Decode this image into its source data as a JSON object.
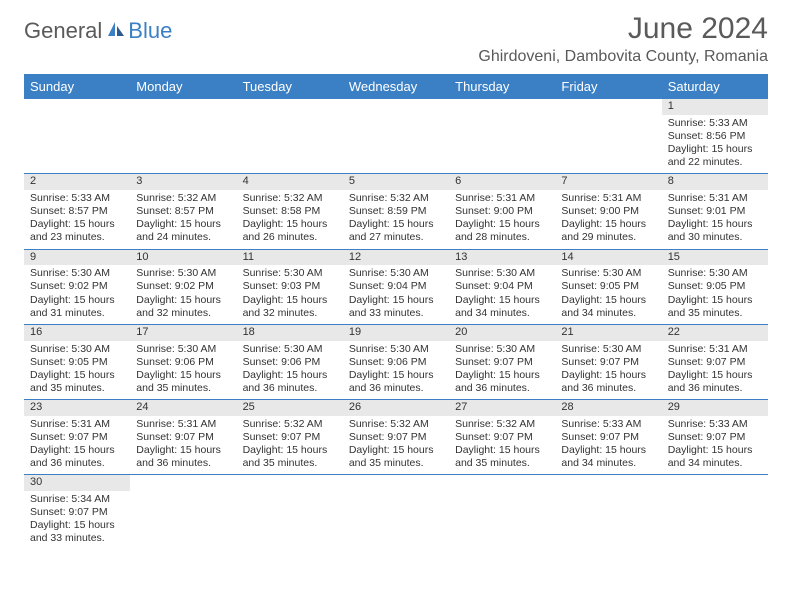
{
  "logo": {
    "part1": "General",
    "part2": "Blue"
  },
  "title": "June 2024",
  "location": "Ghirdoveni, Dambovita County, Romania",
  "colors": {
    "header_bg": "#3b7fc4",
    "header_text": "#ffffff",
    "daynum_bg": "#e8e8e8",
    "border": "#3b7fc4",
    "text": "#333333",
    "logo_gray": "#5a5a5a",
    "logo_blue": "#3b7fc4"
  },
  "weekdays": [
    "Sunday",
    "Monday",
    "Tuesday",
    "Wednesday",
    "Thursday",
    "Friday",
    "Saturday"
  ],
  "weeks": [
    [
      null,
      null,
      null,
      null,
      null,
      null,
      {
        "d": "1",
        "sr": "5:33 AM",
        "ss": "8:56 PM",
        "dl": "15 hours and 22 minutes."
      }
    ],
    [
      {
        "d": "2",
        "sr": "5:33 AM",
        "ss": "8:57 PM",
        "dl": "15 hours and 23 minutes."
      },
      {
        "d": "3",
        "sr": "5:32 AM",
        "ss": "8:57 PM",
        "dl": "15 hours and 24 minutes."
      },
      {
        "d": "4",
        "sr": "5:32 AM",
        "ss": "8:58 PM",
        "dl": "15 hours and 26 minutes."
      },
      {
        "d": "5",
        "sr": "5:32 AM",
        "ss": "8:59 PM",
        "dl": "15 hours and 27 minutes."
      },
      {
        "d": "6",
        "sr": "5:31 AM",
        "ss": "9:00 PM",
        "dl": "15 hours and 28 minutes."
      },
      {
        "d": "7",
        "sr": "5:31 AM",
        "ss": "9:00 PM",
        "dl": "15 hours and 29 minutes."
      },
      {
        "d": "8",
        "sr": "5:31 AM",
        "ss": "9:01 PM",
        "dl": "15 hours and 30 minutes."
      }
    ],
    [
      {
        "d": "9",
        "sr": "5:30 AM",
        "ss": "9:02 PM",
        "dl": "15 hours and 31 minutes."
      },
      {
        "d": "10",
        "sr": "5:30 AM",
        "ss": "9:02 PM",
        "dl": "15 hours and 32 minutes."
      },
      {
        "d": "11",
        "sr": "5:30 AM",
        "ss": "9:03 PM",
        "dl": "15 hours and 32 minutes."
      },
      {
        "d": "12",
        "sr": "5:30 AM",
        "ss": "9:04 PM",
        "dl": "15 hours and 33 minutes."
      },
      {
        "d": "13",
        "sr": "5:30 AM",
        "ss": "9:04 PM",
        "dl": "15 hours and 34 minutes."
      },
      {
        "d": "14",
        "sr": "5:30 AM",
        "ss": "9:05 PM",
        "dl": "15 hours and 34 minutes."
      },
      {
        "d": "15",
        "sr": "5:30 AM",
        "ss": "9:05 PM",
        "dl": "15 hours and 35 minutes."
      }
    ],
    [
      {
        "d": "16",
        "sr": "5:30 AM",
        "ss": "9:05 PM",
        "dl": "15 hours and 35 minutes."
      },
      {
        "d": "17",
        "sr": "5:30 AM",
        "ss": "9:06 PM",
        "dl": "15 hours and 35 minutes."
      },
      {
        "d": "18",
        "sr": "5:30 AM",
        "ss": "9:06 PM",
        "dl": "15 hours and 36 minutes."
      },
      {
        "d": "19",
        "sr": "5:30 AM",
        "ss": "9:06 PM",
        "dl": "15 hours and 36 minutes."
      },
      {
        "d": "20",
        "sr": "5:30 AM",
        "ss": "9:07 PM",
        "dl": "15 hours and 36 minutes."
      },
      {
        "d": "21",
        "sr": "5:30 AM",
        "ss": "9:07 PM",
        "dl": "15 hours and 36 minutes."
      },
      {
        "d": "22",
        "sr": "5:31 AM",
        "ss": "9:07 PM",
        "dl": "15 hours and 36 minutes."
      }
    ],
    [
      {
        "d": "23",
        "sr": "5:31 AM",
        "ss": "9:07 PM",
        "dl": "15 hours and 36 minutes."
      },
      {
        "d": "24",
        "sr": "5:31 AM",
        "ss": "9:07 PM",
        "dl": "15 hours and 36 minutes."
      },
      {
        "d": "25",
        "sr": "5:32 AM",
        "ss": "9:07 PM",
        "dl": "15 hours and 35 minutes."
      },
      {
        "d": "26",
        "sr": "5:32 AM",
        "ss": "9:07 PM",
        "dl": "15 hours and 35 minutes."
      },
      {
        "d": "27",
        "sr": "5:32 AM",
        "ss": "9:07 PM",
        "dl": "15 hours and 35 minutes."
      },
      {
        "d": "28",
        "sr": "5:33 AM",
        "ss": "9:07 PM",
        "dl": "15 hours and 34 minutes."
      },
      {
        "d": "29",
        "sr": "5:33 AM",
        "ss": "9:07 PM",
        "dl": "15 hours and 34 minutes."
      }
    ],
    [
      {
        "d": "30",
        "sr": "5:34 AM",
        "ss": "9:07 PM",
        "dl": "15 hours and 33 minutes."
      },
      null,
      null,
      null,
      null,
      null,
      null
    ]
  ],
  "labels": {
    "sunrise": "Sunrise:",
    "sunset": "Sunset:",
    "daylight": "Daylight:"
  }
}
